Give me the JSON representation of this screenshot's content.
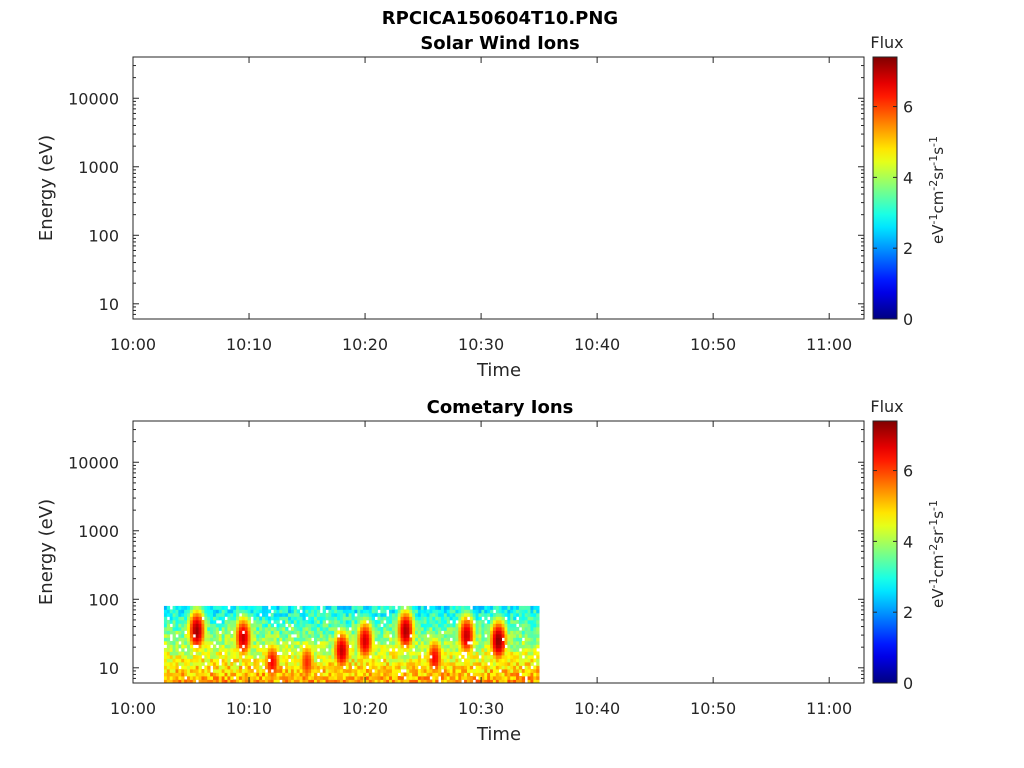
{
  "figure_title": "RPCICA150604T10.PNG",
  "time_ticks": [
    "10:00",
    "10:10",
    "10:20",
    "10:30",
    "10:40",
    "10:50",
    "11:00"
  ],
  "energy_ticks": [
    "10",
    "100",
    "1000",
    "10000"
  ],
  "colorbar": {
    "label": "Flux",
    "units_text": "eV-1cm-2sr-1s-1",
    "ticks": [
      "0",
      "2",
      "4",
      "6"
    ],
    "range": [
      0,
      7.4
    ],
    "colormap": "jet"
  },
  "chart_data": [
    {
      "type": "heatmap",
      "title": "Solar Wind Ions",
      "xlabel": "Time",
      "ylabel": "Energy (eV)",
      "xlim_minutes": [
        0,
        63
      ],
      "ylim_eV": [
        6,
        40000
      ],
      "yscale": "log",
      "data": []
    },
    {
      "type": "heatmap",
      "title": "Cometary Ions",
      "xlabel": "Time",
      "ylabel": "Energy (eV)",
      "xlim_minutes": [
        0,
        63
      ],
      "ylim_eV": [
        6,
        40000
      ],
      "yscale": "log",
      "data_start": "10:02:40",
      "data_end": "10:35:00",
      "energy_range_eV": [
        6,
        80
      ],
      "bursts": [
        {
          "center": "10:05:30",
          "peak_energy_eV": 35,
          "peak_flux": 7.2
        },
        {
          "center": "10:09:30",
          "peak_energy_eV": 28,
          "peak_flux": 6.9
        },
        {
          "center": "10:12:00",
          "peak_energy_eV": 12,
          "peak_flux": 6.5
        },
        {
          "center": "10:15:00",
          "peak_energy_eV": 12,
          "peak_flux": 6.2
        },
        {
          "center": "10:18:00",
          "peak_energy_eV": 18,
          "peak_flux": 6.9
        },
        {
          "center": "10:20:00",
          "peak_energy_eV": 25,
          "peak_flux": 6.8
        },
        {
          "center": "10:23:30",
          "peak_energy_eV": 35,
          "peak_flux": 7.1
        },
        {
          "center": "10:26:00",
          "peak_energy_eV": 14,
          "peak_flux": 6.5
        },
        {
          "center": "10:28:45",
          "peak_energy_eV": 30,
          "peak_flux": 6.9
        },
        {
          "center": "10:31:30",
          "peak_energy_eV": 25,
          "peak_flux": 7.3
        }
      ]
    }
  ]
}
